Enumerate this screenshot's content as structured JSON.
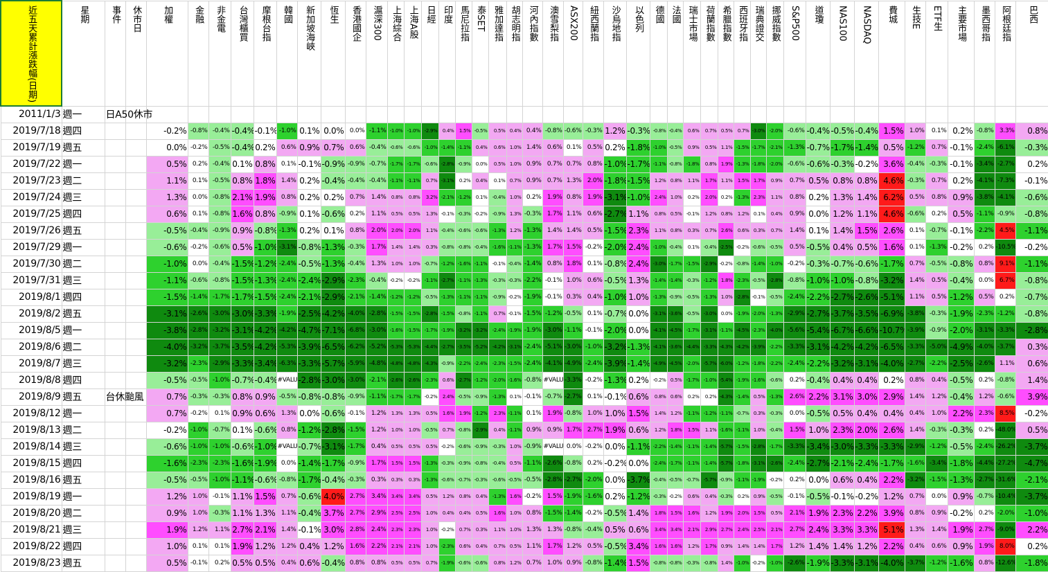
{
  "columns": [
    "近五天累計漲跌幅(日期)",
    "星期",
    "事件",
    "休市日",
    "加權",
    "金融",
    "非金電",
    "台灣櫃買",
    "摩根台指",
    "韓國",
    "新加坡海峽",
    "恆生",
    "香港國企",
    "滬深300",
    "上海綜合",
    "上海A股",
    "日經",
    "印度",
    "馬尼拉指",
    "泰SET",
    "雅加達指",
    "胡志明指",
    "河內指數",
    "澳雪梨指",
    "ASX200",
    "紐西蘭指",
    "沙烏地指",
    "以色列",
    "德國",
    "法國",
    "瑞士市場",
    "荷蘭指數",
    "希臘指數",
    "西班牙指",
    "瑞典證交",
    "挪威指數",
    "S&P500",
    "道瓊",
    "NAS100",
    "NASDAQ",
    "費城",
    "生技E",
    "ETF生",
    "主要市場",
    "墨西哥指",
    "阿根廷指",
    "巴西"
  ],
  "rows": [
    [
      "2011/1/3",
      "週一",
      "日A50休市",
      null,
      null,
      null,
      null,
      null,
      null,
      null,
      null,
      null,
      null,
      null,
      null,
      null,
      null,
      null,
      null,
      null,
      null,
      null,
      null,
      null,
      null,
      null,
      null,
      null,
      null,
      null,
      null,
      null,
      null,
      null,
      null,
      null,
      null,
      null,
      null,
      null,
      null,
      null,
      null,
      null,
      null,
      null,
      null
    ],
    [
      "2019/7/18",
      "週四",
      null,
      null,
      "-0.2%",
      "-0.8%",
      "-0.4%",
      "-0.4%",
      "-0.1%",
      "-1.0%",
      "0.1%",
      "0.0%",
      "0.0%",
      "-1.1%",
      "-1.0%",
      "-1.0%",
      "-2.9%",
      "0.4%",
      "1.5%",
      "-0.5%",
      "0.5%",
      "0.4%",
      "0.4%",
      "-0.8%",
      "-0.6%",
      "-0.3%",
      "1.2%",
      "-0.3%",
      "-0.8%",
      "-0.4%",
      "0.6%",
      "0.7%",
      "0.5%",
      "0.7%",
      "-3.0%",
      "-2.0%",
      "-0.6%",
      "-0.4%",
      "-0.5%",
      "-0.4%",
      "1.5%",
      "1.0%",
      "0.1%",
      "0.2%",
      "-0.8%",
      "3.3%",
      "0.8%"
    ],
    [
      "2019/7/19",
      "週五",
      null,
      null,
      "0.0%",
      "-0.2%",
      "-0.5%",
      "-0.4%",
      "0.2%",
      "0.6%",
      "0.9%",
      "0.7%",
      "0.6%",
      "-0.4%",
      "-0.6%",
      "-0.6%",
      "-1.0%",
      "-1.4%",
      "-1.1%",
      "0.4%",
      "0.6%",
      "1.0%",
      "1.4%",
      "0.6%",
      "0.1%",
      "0.5%",
      "0.2%",
      "-1.8%",
      "-1.0%",
      "-0.5%",
      "0.9%",
      "0.5%",
      "1.1%",
      "-1.5%",
      "-1.7%",
      "-2.1%",
      "-1.3%",
      "-0.7%",
      "-1.7%",
      "-1.4%",
      "0.5%",
      "-1.2%",
      "0.7%",
      "-0.1%",
      "-2.4%",
      "-6.1%",
      "-0.3%"
    ],
    [
      "2019/7/22",
      "週一",
      null,
      null,
      "0.5%",
      "0.2%",
      "-0.4%",
      "0.1%",
      "0.8%",
      "0.1%",
      "-0.1%",
      "-0.9%",
      "-0.9%",
      "-0.7%",
      "-1.7%",
      "-1.7%",
      "-0.6%",
      "-2.8%",
      "-0.9%",
      "0.0%",
      "0.5%",
      "1.0%",
      "0.9%",
      "0.7%",
      "0.7%",
      "0.8%",
      "-1.0%",
      "-1.7%",
      "-1.1%",
      "-0.8%",
      "-1.8%",
      "0.8%",
      "1.9%",
      "-1.3%",
      "-1.8%",
      "-2.0%",
      "-0.6%",
      "-0.6%",
      "-0.3%",
      "-0.2%",
      "3.6%",
      "-0.4%",
      "-0.3%",
      "-0.1%",
      "-3.4%",
      "-2.7%",
      "0.2%"
    ],
    [
      "2019/7/23",
      "週二",
      null,
      null,
      "1.1%",
      "0.1%",
      "-0.5%",
      "0.8%",
      "1.8%",
      "1.4%",
      "0.2%",
      "-0.4%",
      "-0.4%",
      "-0.4%",
      "-1.1%",
      "-1.1%",
      "0.7%",
      "-3.1%",
      "0.2%",
      "0.4%",
      "0.1%",
      "0.7%",
      "0.9%",
      "0.7%",
      "1.3%",
      "2.0%",
      "-1.8%",
      "-1.5%",
      "1.2%",
      "0.8%",
      "1.1%",
      "1.7%",
      "1.1%",
      "1.5%",
      "1.7%",
      "0.9%",
      "0.7%",
      "0.5%",
      "0.8%",
      "0.8%",
      "4.6%",
      "-0.3%",
      "0.7%",
      "0.2%",
      "-4.1%",
      "-7.3%",
      "-0.1%"
    ],
    [
      "2019/7/24",
      "週三",
      null,
      null,
      "1.3%",
      "0.0%",
      "-0.8%",
      "2.1%",
      "1.9%",
      "0.8%",
      "0.2%",
      "0.2%",
      "0.7%",
      "1.4%",
      "0.8%",
      "0.8%",
      "3.2%",
      "-2.1%",
      "-1.2%",
      "0.1%",
      "-0.4%",
      "1.0%",
      "0.2%",
      "1.9%",
      "0.8%",
      "1.9%",
      "-3.1%",
      "-1.0%",
      "2.4%",
      "1.0%",
      "0.2%",
      "2.0%",
      "0.2%",
      "-1.3%",
      "2.3%",
      "1.1%",
      "0.8%",
      "0.2%",
      "1.3%",
      "1.4%",
      "6.2%",
      "0.5%",
      "0.8%",
      "0.9%",
      "-3.8%",
      "-4.1%",
      "-0.6%"
    ],
    [
      "2019/7/25",
      "週四",
      null,
      null,
      "0.6%",
      "0.1%",
      "-0.8%",
      "1.6%",
      "0.8%",
      "-0.9%",
      "0.1%",
      "-0.6%",
      "0.2%",
      "1.1%",
      "0.5%",
      "0.5%",
      "1.3%",
      "-0.1%",
      "-0.3%",
      "-0.2%",
      "-0.9%",
      "1.3%",
      "-0.3%",
      "1.7%",
      "1.1%",
      "0.6%",
      "-2.7%",
      "1.1%",
      "0.8%",
      "0.5%",
      "-0.1%",
      "1.2%",
      "0.8%",
      "1.2%",
      "0.1%",
      "0.4%",
      "0.9%",
      "0.0%",
      "1.2%",
      "1.1%",
      "4.6%",
      "-0.6%",
      "0.2%",
      "0.5%",
      "-1.1%",
      "-0.9%",
      "-0.8%"
    ],
    [
      "2019/7/26",
      "週五",
      null,
      null,
      "-0.5%",
      "-0.4%",
      "-0.9%",
      "0.9%",
      "-0.8%",
      "-1.3%",
      "0.2%",
      "0.1%",
      "0.8%",
      "2.0%",
      "2.0%",
      "2.0%",
      "1.1%",
      "-0.4%",
      "-0.6%",
      "-0.6%",
      "-1.3%",
      "1.2%",
      "-1.3%",
      "1.4%",
      "1.4%",
      "0.5%",
      "-1.5%",
      "2.3%",
      "1.1%",
      "0.8%",
      "0.3%",
      "0.7%",
      "2.6%",
      "0.6%",
      "0.3%",
      "0.7%",
      "1.4%",
      "0.1%",
      "1.4%",
      "1.5%",
      "2.6%",
      "0.1%",
      "-0.7%",
      "-0.1%",
      "-2.2%",
      "4.5%",
      "-1.1%"
    ],
    [
      "2019/7/29",
      "週一",
      null,
      null,
      "-0.6%",
      "-0.2%",
      "-0.6%",
      "0.5%",
      "-1.0%",
      "-3.1%",
      "-0.8%",
      "-1.3%",
      "-0.3%",
      "1.7%",
      "1.4%",
      "1.4%",
      "0.3%",
      "-0.8%",
      "-0.8%",
      "-0.4%",
      "-1.6%",
      "-1.1%",
      "-1.3%",
      "1.7%",
      "1.5%",
      "-0.2%",
      "-2.0%",
      "2.4%",
      "-1.0%",
      "-0.4%",
      "0.1%",
      "-0.4%",
      "-2.5%",
      "-0.2%",
      "-0.6%",
      "-0.5%",
      "0.5%",
      "-0.5%",
      "0.4%",
      "0.5%",
      "1.6%",
      "0.1%",
      "-1.3%",
      "-0.2%",
      "0.2%",
      "-10.5%",
      "-0.2%"
    ],
    [
      "2019/7/30",
      "週二",
      null,
      null,
      "-1.0%",
      "0.0%",
      "-0.4%",
      "-1.5%",
      "-1.2%",
      "-2.4%",
      "-0.5%",
      "-1.3%",
      "-0.4%",
      "1.3%",
      "1.0%",
      "1.0%",
      "-0.7%",
      "-1.2%",
      "-1.6%",
      "-1.1%",
      "-0.1%",
      "-0.4%",
      "-1.4%",
      "0.8%",
      "1.8%",
      "0.1%",
      "-0.8%",
      "2.4%",
      "-3.0%",
      "-1.7%",
      "-1.5%",
      "-2.9%",
      "-0.2%",
      "-0.8%",
      "-1.4%",
      "-1.0%",
      "-0.2%",
      "-0.3%",
      "-0.7%",
      "-0.6%",
      "-1.7%",
      "0.7%",
      "-0.5%",
      "-0.8%",
      "0.8%",
      "9.1%",
      "-1.1%"
    ],
    [
      "2019/7/31",
      "週三",
      null,
      null,
      "-1.1%",
      "-0.6%",
      "-0.8%",
      "-1.5%",
      "-1.3%",
      "-2.4%",
      "-2.4%",
      "-2.9%",
      "-2.3%",
      "-0.4%",
      "-0.2%",
      "-0.2%",
      "-1.1%",
      "-2.7%",
      "-1.1%",
      "-1.3%",
      "-0.3%",
      "-0.3%",
      "-2.2%",
      "-0.1%",
      "1.0%",
      "0.6%",
      "-0.5%",
      "1.3%",
      "-1.4%",
      "-1.4%",
      "-0.3%",
      "-1.2%",
      "1.8%",
      "-2.3%",
      "-0.5%",
      "-2.8%",
      "-0.8%",
      "-1.0%",
      "-1.0%",
      "-0.8%",
      "-3.2%",
      "1.4%",
      "0.5%",
      "-0.4%",
      "0.0%",
      "6.7%",
      "-0.8%"
    ],
    [
      "2019/8/1",
      "週四",
      null,
      null,
      "-1.5%",
      "-1.4%",
      "-1.7%",
      "-1.7%",
      "-1.5%",
      "-2.4%",
      "-2.1%",
      "-2.9%",
      "-2.1%",
      "-1.4%",
      "-1.2%",
      "-1.2%",
      "-0.5%",
      "-1.3%",
      "-1.1%",
      "-1.1%",
      "-0.9%",
      "-0.2%",
      "-1.9%",
      "-0.1%",
      "0.3%",
      "0.4%",
      "-1.0%",
      "1.0%",
      "-1.3%",
      "-0.9%",
      "-0.5%",
      "-1.3%",
      "1.0%",
      "-2.8%",
      "-0.1%",
      "-0.5%",
      "-2.4%",
      "-2.2%",
      "-2.7%",
      "-2.6%",
      "-5.1%",
      "1.1%",
      "0.5%",
      "-1.2%",
      "0.5%",
      "0.2%",
      "-0.7%"
    ],
    [
      "2019/8/2",
      "週五",
      null,
      null,
      "-3.1%",
      "-2.6%",
      "-3.0%",
      "-3.0%",
      "-3.3%",
      "-1.9%",
      "-2.5%",
      "-4.2%",
      "-4.0%",
      "-2.8%",
      "-1.5%",
      "-1.5%",
      "-2.8%",
      "-1.5%",
      "-0.8%",
      "-1.1%",
      "0.7%",
      "-0.1%",
      "-1.5%",
      "-1.2%",
      "-0.5%",
      "0.1%",
      "-0.7%",
      "0.0%",
      "-3.1%",
      "-3.6%",
      "-0.5%",
      "-3.0%",
      "0.0%",
      "-1.9%",
      "-2.0%",
      "-1.3%",
      "-2.9%",
      "-2.7%",
      "-3.7%",
      "-3.5%",
      "-6.9%",
      "-3.8%",
      "-0.3%",
      "-1.9%",
      "-2.3%",
      "-1.2%",
      "-0.8%"
    ],
    [
      "2019/8/5",
      "週一",
      null,
      null,
      "-3.8%",
      "-2.8%",
      "-3.2%",
      "-3.1%",
      "-4.2%",
      "-4.2%",
      "-4.7%",
      "-7.1%",
      "-6.8%",
      "-3.0%",
      "-1.6%",
      "-1.5%",
      "-1.7%",
      "-1.9%",
      "-3.2%",
      "-3.2%",
      "-2.4%",
      "-1.9%",
      "-1.9%",
      "-3.0%",
      "-1.1%",
      "-0.1%",
      "-2.0%",
      "0.0%",
      "-4.1%",
      "-4.5%",
      "-1.7%",
      "-3.1%",
      "-1.1%",
      "-4.5%",
      "-2.3%",
      "-4.0%",
      "-5.6%",
      "-5.4%",
      "-6.7%",
      "-6.6%",
      "-10.7%",
      "-3.9%",
      "-0.9%",
      "-2.0%",
      "-3.1%",
      "-3.3%",
      "-2.8%"
    ],
    [
      "2019/8/6",
      "週二",
      null,
      null,
      "-4.0%",
      "-3.2%",
      "-3.7%",
      "-3.5%",
      "-4.2%",
      "-5.3%",
      "-3.9%",
      "-6.5%",
      "-6.2%",
      "-5.2%",
      "-5.3%",
      "-5.3%",
      "-4.4%",
      "-2.7%",
      "-3.5%",
      "-5.2%",
      "-4.2%",
      "-3.1%",
      "-2.4%",
      "-5.1%",
      "-3.0%",
      "-1.0%",
      "-3.2%",
      "-1.3%",
      "-4.1%",
      "-3.6%",
      "-4.4%",
      "-3.3%",
      "-4.3%",
      "-4.2%",
      "-3.9%",
      "-2.2%",
      "-3.3%",
      "-3.1%",
      "-4.2%",
      "-4.2%",
      "-6.5%",
      "-3.3%",
      "-5.0%",
      "-4.9%",
      "-4.0%",
      "-3.7%",
      "0.3%"
    ],
    [
      "2019/8/7",
      "週三",
      null,
      null,
      "-3.2%",
      "-2.3%",
      "-2.9%",
      "-3.3%",
      "-3.4%",
      "-6.3%",
      "-3.3%",
      "-5.7%",
      "-5.9%",
      "-4.8%",
      "-4.8%",
      "-4.8%",
      "-4.3%",
      "-0.9%",
      "-2.2%",
      "-2.4%",
      "-2.3%",
      "-1.5%",
      "-2.4%",
      "-4.1%",
      "-4.9%",
      "-2.4%",
      "-3.9%",
      "-1.4%",
      "-4.9%",
      "-4.5%",
      "-2.0%",
      "-5.7%",
      "-6.0%",
      "-1.2%",
      "-1.8%",
      "-2.2%",
      "-2.4%",
      "-2.2%",
      "-3.2%",
      "-3.1%",
      "-4.0%",
      "-2.7%",
      "-2.2%",
      "-2.5%",
      "-2.6%",
      "1.1%",
      "0.6%"
    ],
    [
      "2019/8/8",
      "週四",
      null,
      null,
      "-0.5%",
      "-0.5%",
      "-1.0%",
      "-0.7%",
      "-0.4%",
      "#VALUE!",
      "-2.8%",
      "-3.0%",
      "-3.0%",
      "-2.1%",
      "-2.6%",
      "-2.6%",
      "-2.3%",
      "0.6%",
      "-2.7%",
      "-1.2%",
      "-2.0%",
      "-1.6%",
      "-0.8%",
      "#VALUE!",
      "-3.3%",
      "-0.2%",
      "-1.3%",
      "0.2%",
      "-0.2%",
      "0.5%",
      "-1.7%",
      "-1.0%",
      "-5.4%",
      "-1.9%",
      "-1.6%",
      "-0.6%",
      "0.2%",
      "-0.4%",
      "0.4%",
      "0.4%",
      "0.2%",
      "0.8%",
      "0.4%",
      "-0.5%",
      "0.2%",
      "-0.8%",
      "1.4%"
    ],
    [
      "2019/8/9",
      "週五",
      "台休颱風",
      null,
      "0.7%",
      "-0.3%",
      "-0.3%",
      "0.8%",
      "0.9%",
      "-0.5%",
      "-0.8%",
      "-0.8%",
      "-0.9%",
      "-1.1%",
      "-1.7%",
      "-1.7%",
      "-0.2%",
      "2.4%",
      "-0.5%",
      "-0.9%",
      "-1.3%",
      "0.1%",
      "-0.1%",
      "-0.7%",
      "-2.7%",
      "0.1%",
      "-0.1%",
      "0.6%",
      "0.8%",
      "0.6%",
      "0.2%",
      "0.2%",
      "-4.3%",
      "-1.4%",
      "0.5%",
      "-1.3%",
      "2.6%",
      "2.2%",
      "3.1%",
      "3.0%",
      "2.9%",
      "1.4%",
      "1.2%",
      "-0.4%",
      "1.2%",
      "-0.6%",
      "3.9%"
    ],
    [
      "2019/8/12",
      "週一",
      null,
      null,
      "0.7%",
      "-0.2%",
      "0.1%",
      "0.9%",
      "0.6%",
      "1.3%",
      "0.0%",
      "-0.6%",
      "-0.1%",
      "1.2%",
      "1.3%",
      "1.3%",
      "0.5%",
      "1.6%",
      "1.9%",
      "-1.2%",
      "2.3%",
      "-1.1%",
      "0.1%",
      "1.9%",
      "-0.8%",
      "1.0%",
      "1.0%",
      "1.5%",
      "1.4%",
      "1.2%",
      "-1.1%",
      "-1.2%",
      "-1.1%",
      "-0.7%",
      "0.3%",
      "-0.3%",
      "0.0%",
      "-0.5%",
      "0.5%",
      "0.4%",
      "0.4%",
      "0.4%",
      "1.0%",
      "2.2%",
      "2.3%",
      "8.5%",
      "-0.2%"
    ],
    [
      "2019/8/13",
      "週二",
      null,
      null,
      "-0.2%",
      "-1.0%",
      "-0.7%",
      "0.1%",
      "-0.6%",
      "0.8%",
      "-1.2%",
      "-2.8%",
      "-1.5%",
      "1.2%",
      "1.0%",
      "1.0%",
      "-0.5%",
      "0.7%",
      "-0.8%",
      "-2.9%",
      "0.4%",
      "-1.1%",
      "0.9%",
      "0.9%",
      "1.7%",
      "2.7%",
      "1.9%",
      "0.6%",
      "1.2%",
      "1.8%",
      "1.5%",
      "1.1%",
      "-1.6%",
      "-1.1%",
      "1.0%",
      "-0.4%",
      "1.5%",
      "1.0%",
      "2.3%",
      "2.0%",
      "2.6%",
      "1.4%",
      "-0.3%",
      "-0.3%",
      "0.2%",
      "-48.0%",
      "0.5%"
    ],
    [
      "2019/8/14",
      "週三",
      null,
      null,
      "-0.6%",
      "-1.0%",
      "-1.0%",
      "-0.6%",
      "-1.0%",
      "#VALUE!",
      "-0.7%",
      "-3.1%",
      "-1.7%",
      "0.4%",
      "0.5%",
      "0.5%",
      "0.5%",
      "-0.2%",
      "-0.6%",
      "-0.9%",
      "-0.3%",
      "1.0%",
      "-0.9%",
      "#VALUE!",
      "0.0%",
      "-0.2%",
      "0.0%",
      "-1.1%",
      "-2.2%",
      "-1.4%",
      "-1.1%",
      "-1.4%",
      "-5.7%",
      "-1.5%",
      "-2.8%",
      "-1.7%",
      "-3.3%",
      "-3.4%",
      "-3.0%",
      "-3.3%",
      "-3.3%",
      "-2.9%",
      "-1.2%",
      "-0.5%",
      "-2.4%",
      "-26.2%",
      "-3.7%"
    ],
    [
      "2019/8/15",
      "週四",
      null,
      null,
      "-1.6%",
      "-2.3%",
      "-2.3%",
      "-1.6%",
      "-1.9%",
      "0.0%",
      "-1.4%",
      "-1.7%",
      "-0.9%",
      "1.7%",
      "1.5%",
      "1.5%",
      "-1.3%",
      "-0.3%",
      "-0.9%",
      "-0.8%",
      "-0.4%",
      "0.5%",
      "-1.1%",
      "-2.6%",
      "-0.8%",
      "0.2%",
      "-0.2%",
      "0.0%",
      "-2.4%",
      "-1.7%",
      "-1.1%",
      "-1.4%",
      "-5.7%",
      "-1.8%",
      "-3.1%",
      "-2.6%",
      "-2.4%",
      "-2.7%",
      "-2.1%",
      "-2.4%",
      "-1.7%",
      "-1.6%",
      "-3.4%",
      "-1.8%",
      "-4.4%",
      "-27.2%",
      "-4.7%"
    ],
    [
      "2019/8/16",
      "週五",
      null,
      null,
      "-0.5%",
      "-0.5%",
      "-1.0%",
      "-1.1%",
      "-0.6%",
      "-0.8%",
      "-1.7%",
      "-0.4%",
      "-0.3%",
      "0.3%",
      "0.3%",
      "0.3%",
      "-1.3%",
      "-0.6%",
      "-0.7%",
      "-0.3%",
      "-0.6%",
      "-0.5%",
      "-0.5%",
      "-2.8%",
      "-2.7%",
      "-2.0%",
      "0.0%",
      "-3.7%",
      "-0.4%",
      "-0.5%",
      "-0.7%",
      "-5.7%",
      "-0.9%",
      "-1.1%",
      "-1.9%",
      "-0.2%",
      "0.2%",
      "0.0%",
      "0.6%",
      "0.4%",
      "2.2%",
      "-3.2%",
      "-1.5%",
      "-1.3%",
      "-2.7%",
      "-31.6%",
      "-2.1%"
    ],
    [
      "2019/8/19",
      "週一",
      null,
      null,
      "1.2%",
      "1.0%",
      "-0.1%",
      "1.1%",
      "1.5%",
      "0.7%",
      "-0.6%",
      "4.0%",
      "2.7%",
      "3.4%",
      "3.4%",
      "3.4%",
      "0.5%",
      "1.2%",
      "0.8%",
      "0.4%",
      "-1.3%",
      "1.6%",
      "-0.2%",
      "1.5%",
      "-1.9%",
      "-1.6%",
      "0.2%",
      "-1.2%",
      "-0.3%",
      "-0.2%",
      "0.6%",
      "0.4%",
      "-0.3%",
      "0.2%",
      "0.9%",
      "-0.5%",
      "-0.1%",
      "-0.5%",
      "-0.1%",
      "-0.2%",
      "1.2%",
      "0.7%",
      "0.0%",
      "0.9%",
      "-0.7%",
      "-10.4%",
      "-3.7%"
    ],
    [
      "2019/8/20",
      "週二",
      null,
      null,
      "0.9%",
      "1.0%",
      "-0.3%",
      "1.1%",
      "1.3%",
      "1.1%",
      "-0.4%",
      "3.7%",
      "2.7%",
      "2.9%",
      "2.5%",
      "2.5%",
      "1.0%",
      "0.4%",
      "0.4%",
      "0.5%",
      "1.6%",
      "1.0%",
      "0.8%",
      "-1.5%",
      "-1.4%",
      "-0.2%",
      "-0.5%",
      "1.4%",
      "1.8%",
      "1.5%",
      "1.6%",
      "1.2%",
      "1.9%",
      "2.0%",
      "1.5%",
      "0.5%",
      "2.1%",
      "1.9%",
      "2.3%",
      "2.2%",
      "3.9%",
      "0.8%",
      "0.9%",
      "-0.2%",
      "0.2%",
      "-2.0%",
      "-1.0%"
    ],
    [
      "2019/8/21",
      "週三",
      null,
      null,
      "1.9%",
      "1.2%",
      "1.1%",
      "2.7%",
      "2.1%",
      "1.4%",
      "-0.1%",
      "3.0%",
      "2.8%",
      "2.4%",
      "2.3%",
      "2.3%",
      "1.0%",
      "-0.2%",
      "0.7%",
      "0.3%",
      "1.1%",
      "1.0%",
      "1.3%",
      "1.3%",
      "-0.8%",
      "-0.4%",
      "0.5%",
      "0.6%",
      "3.4%",
      "3.4%",
      "2.1%",
      "2.9%",
      "2.7%",
      "2.4%",
      "2.5%",
      "2.1%",
      "2.7%",
      "2.4%",
      "3.3%",
      "3.3%",
      "5.1%",
      "1.3%",
      "1.4%",
      "1.9%",
      "2.7%",
      "-9.0%",
      "2.2%"
    ],
    [
      "2019/8/22",
      "週四",
      null,
      null,
      "1.0%",
      "0.1%",
      "0.1%",
      "1.9%",
      "1.2%",
      "1.2%",
      "0.4%",
      "1.2%",
      "1.6%",
      "2.2%",
      "2.1%",
      "2.1%",
      "1.0%",
      "-2.3%",
      "0.6%",
      "0.4%",
      "0.7%",
      "0.5%",
      "1.1%",
      "1.7%",
      "1.2%",
      "0.5%",
      "-0.5%",
      "3.4%",
      "1.6%",
      "1.6%",
      "1.2%",
      "1.7%",
      "0.9%",
      "1.4%",
      "1.4%",
      "1.7%",
      "1.2%",
      "1.4%",
      "1.4%",
      "1.2%",
      "2.2%",
      "0.4%",
      "0.6%",
      "0.9%",
      "1.9%",
      "8.0%",
      "0.2%"
    ],
    [
      "2019/8/23",
      "週五",
      null,
      null,
      "0.5%",
      "-0.1%",
      "0.2%",
      "0.5%",
      "0.5%",
      "0.4%",
      "0.6%",
      "-0.4%",
      "0.8%",
      "0.8%",
      "0.5%",
      "0.5%",
      "0.7%",
      "-1.9%",
      "-0.6%",
      "-0.6%",
      "0.8%",
      "1.2%",
      "0.7%",
      "1.0%",
      "0.9%",
      "-0.8%",
      "-1.4%",
      "1.5%",
      "-0.8%",
      "-0.8%",
      "-0.3%",
      "-0.8%",
      "1.4%",
      "-1.0%",
      "-0.2%",
      "-1.0%",
      "-2.6%",
      "-1.9%",
      "-3.3%",
      "-3.1%",
      "-4.0%",
      "-3.7%",
      "-1.2%",
      "-1.6%",
      "0.8%",
      "-12.6%",
      "-1.8%"
    ]
  ]
}
